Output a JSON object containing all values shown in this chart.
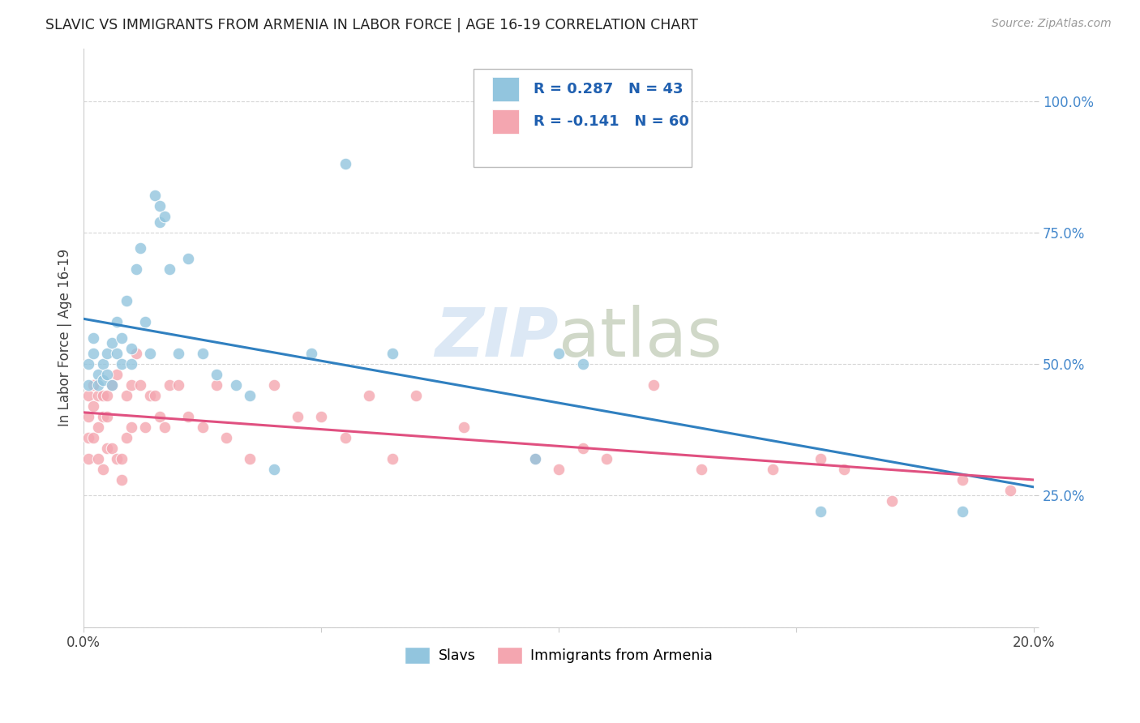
{
  "title": "SLAVIC VS IMMIGRANTS FROM ARMENIA IN LABOR FORCE | AGE 16-19 CORRELATION CHART",
  "source": "Source: ZipAtlas.com",
  "ylabel": "In Labor Force | Age 16-19",
  "x_min": 0.0,
  "x_max": 0.2,
  "y_min": 0.0,
  "y_max": 1.1,
  "slavs_R": 0.287,
  "slavs_N": 43,
  "armenia_R": -0.141,
  "armenia_N": 60,
  "blue_color": "#92c5de",
  "pink_color": "#f4a6b0",
  "blue_line_color": "#3080c0",
  "pink_line_color": "#e05080",
  "legend_R_color": "#2060b0",
  "slavs_x": [
    0.001,
    0.001,
    0.002,
    0.002,
    0.003,
    0.003,
    0.004,
    0.004,
    0.005,
    0.005,
    0.006,
    0.006,
    0.007,
    0.007,
    0.008,
    0.008,
    0.009,
    0.01,
    0.01,
    0.011,
    0.012,
    0.013,
    0.014,
    0.015,
    0.016,
    0.016,
    0.017,
    0.018,
    0.02,
    0.022,
    0.025,
    0.028,
    0.032,
    0.035,
    0.04,
    0.048,
    0.055,
    0.065,
    0.095,
    0.1,
    0.105,
    0.155,
    0.185
  ],
  "slavs_y": [
    0.46,
    0.5,
    0.52,
    0.55,
    0.48,
    0.46,
    0.5,
    0.47,
    0.52,
    0.48,
    0.54,
    0.46,
    0.58,
    0.52,
    0.55,
    0.5,
    0.62,
    0.53,
    0.5,
    0.68,
    0.72,
    0.58,
    0.52,
    0.82,
    0.8,
    0.77,
    0.78,
    0.68,
    0.52,
    0.7,
    0.52,
    0.48,
    0.46,
    0.44,
    0.3,
    0.52,
    0.88,
    0.52,
    0.32,
    0.52,
    0.5,
    0.22,
    0.22
  ],
  "armenia_x": [
    0.001,
    0.001,
    0.001,
    0.001,
    0.002,
    0.002,
    0.002,
    0.003,
    0.003,
    0.003,
    0.004,
    0.004,
    0.004,
    0.005,
    0.005,
    0.005,
    0.006,
    0.006,
    0.007,
    0.007,
    0.008,
    0.008,
    0.009,
    0.009,
    0.01,
    0.01,
    0.011,
    0.012,
    0.013,
    0.014,
    0.015,
    0.016,
    0.017,
    0.018,
    0.02,
    0.022,
    0.025,
    0.028,
    0.03,
    0.035,
    0.04,
    0.045,
    0.05,
    0.055,
    0.06,
    0.065,
    0.07,
    0.08,
    0.095,
    0.1,
    0.105,
    0.11,
    0.12,
    0.13,
    0.145,
    0.155,
    0.16,
    0.17,
    0.185,
    0.195
  ],
  "armenia_y": [
    0.44,
    0.4,
    0.36,
    0.32,
    0.46,
    0.42,
    0.36,
    0.44,
    0.38,
    0.32,
    0.44,
    0.4,
    0.3,
    0.44,
    0.4,
    0.34,
    0.46,
    0.34,
    0.48,
    0.32,
    0.32,
    0.28,
    0.44,
    0.36,
    0.46,
    0.38,
    0.52,
    0.46,
    0.38,
    0.44,
    0.44,
    0.4,
    0.38,
    0.46,
    0.46,
    0.4,
    0.38,
    0.46,
    0.36,
    0.32,
    0.46,
    0.4,
    0.4,
    0.36,
    0.44,
    0.32,
    0.44,
    0.38,
    0.32,
    0.3,
    0.34,
    0.32,
    0.46,
    0.3,
    0.3,
    0.32,
    0.3,
    0.24,
    0.28,
    0.26
  ],
  "background_color": "#ffffff",
  "grid_color": "#cccccc"
}
